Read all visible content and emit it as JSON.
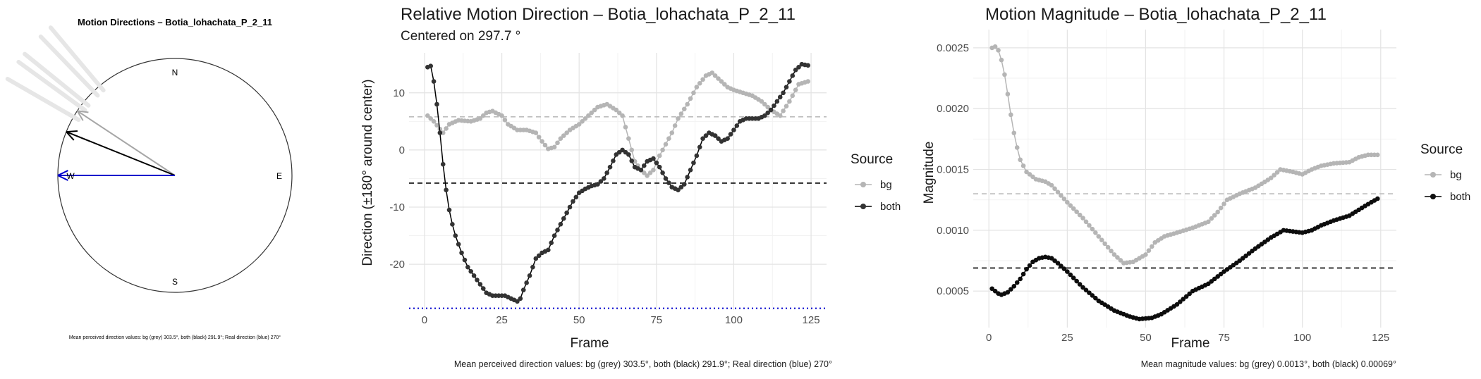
{
  "compass": {
    "title": "Motion Directions – Botia_lohachata_P_2_11",
    "north": "N",
    "east": "E",
    "south": "S",
    "west": "W",
    "footer": "Mean perceived direction values: bg (grey) 303.5°, both (black) 291.9°; Real direction (blue) 270°",
    "arrows": [
      {
        "name": "bg",
        "angle_deg": 303.5,
        "color": "#a6a6a6"
      },
      {
        "name": "both",
        "angle_deg": 291.9,
        "color": "#000000"
      },
      {
        "name": "real",
        "angle_deg": 270,
        "color": "#0000cc"
      }
    ],
    "faint_rays_deg": [
      300,
      306,
      309,
      316,
      320
    ]
  },
  "chart_data": [
    {
      "type": "line",
      "title": "Relative Motion Direction – Botia_lohachata_P_2_11",
      "subtitle": "Centered on  297.7 °",
      "xlabel": "Frame",
      "ylabel": "Direction (±180° around center)",
      "xlim": [
        -5,
        130
      ],
      "ylim": [
        -28,
        17
      ],
      "xticks": [
        0,
        25,
        50,
        75,
        100,
        125
      ],
      "yticks": [
        -20,
        -10,
        0,
        10
      ],
      "grid": true,
      "legend_title": "Source",
      "legend_position": "right",
      "caption": "Mean perceived direction values: bg (grey) 303.5°, both (black) 291.9°; Real direction (blue) 270°",
      "reference_lines": [
        {
          "name": "bg mean",
          "y": 5.8,
          "color": "#bdbdbd",
          "style": "dashed"
        },
        {
          "name": "both mean",
          "y": -5.8,
          "color": "#000000",
          "style": "dashed"
        },
        {
          "name": "real",
          "y": -27.7,
          "color": "#0000cc",
          "style": "dotted"
        }
      ],
      "series": [
        {
          "name": "bg",
          "color": "#b5b5b5",
          "keypoints": [
            [
              1,
              6
            ],
            [
              3,
              5
            ],
            [
              6,
              3
            ],
            [
              8,
              4.5
            ],
            [
              11,
              5.2
            ],
            [
              15,
              5
            ],
            [
              18,
              5.5
            ],
            [
              20,
              6.5
            ],
            [
              22,
              6.8
            ],
            [
              25,
              6
            ],
            [
              27,
              4.5
            ],
            [
              30,
              3.5
            ],
            [
              33,
              3.5
            ],
            [
              36,
              3
            ],
            [
              38,
              1.5
            ],
            [
              40,
              0.2
            ],
            [
              42,
              0.5
            ],
            [
              44,
              2
            ],
            [
              47,
              3.5
            ],
            [
              50,
              4.5
            ],
            [
              53,
              6
            ],
            [
              56,
              7.5
            ],
            [
              59,
              8
            ],
            [
              62,
              7
            ],
            [
              64,
              6
            ],
            [
              66,
              2
            ],
            [
              68,
              -2
            ],
            [
              70,
              -3.5
            ],
            [
              72,
              -4.5
            ],
            [
              74,
              -3.5
            ],
            [
              76,
              -1
            ],
            [
              78,
              1
            ],
            [
              80,
              3
            ],
            [
              82,
              5.5
            ],
            [
              85,
              8
            ],
            [
              88,
              11
            ],
            [
              91,
              13
            ],
            [
              93,
              13.5
            ],
            [
              95,
              12.5
            ],
            [
              98,
              11
            ],
            [
              100,
              10.5
            ],
            [
              103,
              10
            ],
            [
              106,
              9.5
            ],
            [
              109,
              8.5
            ],
            [
              112,
              7
            ],
            [
              115,
              6
            ],
            [
              118,
              8.5
            ],
            [
              121,
              11.5
            ],
            [
              124,
              12
            ]
          ]
        },
        {
          "name": "both",
          "color": "#000000",
          "keypoints": [
            [
              1,
              14.5
            ],
            [
              2,
              14.7
            ],
            [
              3,
              12
            ],
            [
              4,
              8
            ],
            [
              5,
              3
            ],
            [
              6,
              -2.5
            ],
            [
              7,
              -7
            ],
            [
              8,
              -10.5
            ],
            [
              9,
              -13
            ],
            [
              10,
              -15
            ],
            [
              11,
              -16.5
            ],
            [
              12,
              -18
            ],
            [
              14,
              -20.5
            ],
            [
              16,
              -22
            ],
            [
              18,
              -23.5
            ],
            [
              20,
              -25
            ],
            [
              22,
              -25.5
            ],
            [
              24,
              -25.5
            ],
            [
              26,
              -25.5
            ],
            [
              28,
              -26
            ],
            [
              30,
              -26.5
            ],
            [
              31,
              -26
            ],
            [
              32,
              -24.5
            ],
            [
              34,
              -22
            ],
            [
              36,
              -19
            ],
            [
              38,
              -18
            ],
            [
              40,
              -17.5
            ],
            [
              42,
              -15
            ],
            [
              44,
              -13
            ],
            [
              46,
              -11
            ],
            [
              48,
              -9
            ],
            [
              50,
              -7.5
            ],
            [
              52,
              -6.8
            ],
            [
              54,
              -6.3
            ],
            [
              56,
              -6
            ],
            [
              58,
              -5
            ],
            [
              60,
              -3
            ],
            [
              62,
              -0.8
            ],
            [
              64,
              0
            ],
            [
              66,
              -0.8
            ],
            [
              68,
              -3
            ],
            [
              70,
              -3.5
            ],
            [
              72,
              -2
            ],
            [
              74,
              -1.5
            ],
            [
              76,
              -3
            ],
            [
              78,
              -5
            ],
            [
              80,
              -6.5
            ],
            [
              82,
              -7
            ],
            [
              84,
              -6
            ],
            [
              86,
              -3.5
            ],
            [
              88,
              -1
            ],
            [
              90,
              2
            ],
            [
              92,
              3
            ],
            [
              94,
              2.5
            ],
            [
              96,
              1.5
            ],
            [
              98,
              2
            ],
            [
              100,
              3.5
            ],
            [
              102,
              5
            ],
            [
              104,
              5.5
            ],
            [
              106,
              5.5
            ],
            [
              108,
              5.5
            ],
            [
              110,
              6
            ],
            [
              112,
              7
            ],
            [
              114,
              8.5
            ],
            [
              116,
              10
            ],
            [
              118,
              12
            ],
            [
              120,
              14
            ],
            [
              122,
              15
            ],
            [
              124,
              14.8
            ]
          ]
        }
      ]
    },
    {
      "type": "line",
      "title": "Motion Magnitude – Botia_lohachata_P_2_11",
      "xlabel": "Frame",
      "ylabel": "Magnitude",
      "xlim": [
        -5,
        130
      ],
      "ylim": [
        0.0002,
        0.00265
      ],
      "xticks": [
        0,
        25,
        50,
        75,
        100,
        125
      ],
      "yticks": [
        0.0005,
        0.001,
        0.0015,
        0.002,
        0.0025
      ],
      "ytick_labels": [
        "0.0005",
        "0.0010",
        "0.0015",
        "0.0020",
        "0.0025"
      ],
      "grid": true,
      "legend_title": "Source",
      "legend_position": "right",
      "caption": "Mean magnitude values: bg (grey) 0.0013°, both (black) 0.00069°",
      "reference_lines": [
        {
          "name": "bg mean",
          "y": 0.0013,
          "color": "#bdbdbd",
          "style": "dashed"
        },
        {
          "name": "both mean",
          "y": 0.00069,
          "color": "#000000",
          "style": "dashed"
        }
      ],
      "series": [
        {
          "name": "bg",
          "color": "#b5b5b5",
          "keypoints": [
            [
              1,
              0.0025
            ],
            [
              2,
              0.00251
            ],
            [
              3,
              0.00248
            ],
            [
              4,
              0.0024
            ],
            [
              5,
              0.00228
            ],
            [
              6,
              0.00212
            ],
            [
              7,
              0.00195
            ],
            [
              8,
              0.0018
            ],
            [
              9,
              0.00168
            ],
            [
              10,
              0.00158
            ],
            [
              12,
              0.00148
            ],
            [
              15,
              0.00142
            ],
            [
              18,
              0.0014
            ],
            [
              20,
              0.00137
            ],
            [
              25,
              0.00123
            ],
            [
              30,
              0.0011
            ],
            [
              35,
              0.00095
            ],
            [
              40,
              0.0008
            ],
            [
              43,
              0.00073
            ],
            [
              46,
              0.00074
            ],
            [
              50,
              0.0008
            ],
            [
              53,
              0.0009
            ],
            [
              56,
              0.00095
            ],
            [
              60,
              0.00098
            ],
            [
              65,
              0.00102
            ],
            [
              70,
              0.00107
            ],
            [
              73,
              0.00115
            ],
            [
              76,
              0.00125
            ],
            [
              80,
              0.0013
            ],
            [
              85,
              0.00135
            ],
            [
              90,
              0.00143
            ],
            [
              93,
              0.0015
            ],
            [
              97,
              0.00148
            ],
            [
              100,
              0.00146
            ],
            [
              103,
              0.0015
            ],
            [
              106,
              0.00153
            ],
            [
              110,
              0.00155
            ],
            [
              115,
              0.00156
            ],
            [
              118,
              0.0016
            ],
            [
              121,
              0.00162
            ],
            [
              124,
              0.00162
            ]
          ]
        },
        {
          "name": "both",
          "color": "#000000",
          "keypoints": [
            [
              1,
              0.00052
            ],
            [
              2,
              0.0005
            ],
            [
              3,
              0.00048
            ],
            [
              4,
              0.00047
            ],
            [
              6,
              0.00049
            ],
            [
              8,
              0.00054
            ],
            [
              10,
              0.0006
            ],
            [
              12,
              0.00068
            ],
            [
              14,
              0.00074
            ],
            [
              16,
              0.00077
            ],
            [
              18,
              0.00078
            ],
            [
              20,
              0.00077
            ],
            [
              22,
              0.00073
            ],
            [
              25,
              0.00066
            ],
            [
              30,
              0.00053
            ],
            [
              35,
              0.00042
            ],
            [
              40,
              0.00034
            ],
            [
              45,
              0.00029
            ],
            [
              48,
              0.00027
            ],
            [
              52,
              0.00028
            ],
            [
              55,
              0.00031
            ],
            [
              60,
              0.00039
            ],
            [
              65,
              0.0005
            ],
            [
              70,
              0.00056
            ],
            [
              75,
              0.00066
            ],
            [
              80,
              0.00075
            ],
            [
              85,
              0.00085
            ],
            [
              90,
              0.00094
            ],
            [
              94,
              0.001
            ],
            [
              97,
              0.00099
            ],
            [
              100,
              0.00098
            ],
            [
              103,
              0.001
            ],
            [
              106,
              0.00104
            ],
            [
              110,
              0.00108
            ],
            [
              115,
              0.00112
            ],
            [
              120,
              0.0012
            ],
            [
              124,
              0.00126
            ]
          ]
        }
      ]
    }
  ]
}
